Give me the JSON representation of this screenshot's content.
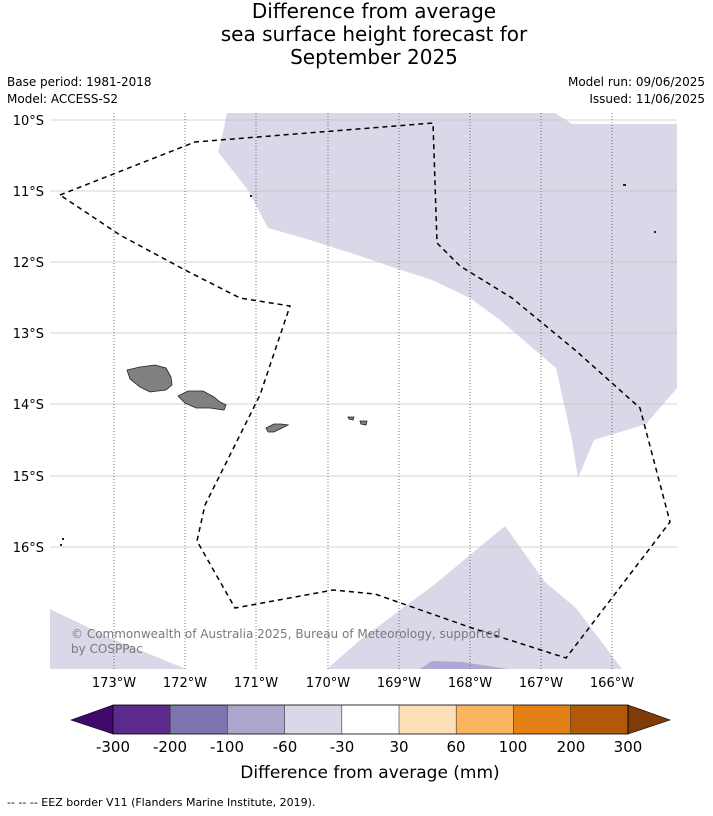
{
  "title": {
    "line1": "Difference from average",
    "line2": "sea surface height forecast for",
    "line3": "September 2025"
  },
  "meta_left": {
    "base_period": "Base period: 1981-2018",
    "model": "Model: ACCESS-S2"
  },
  "meta_right": {
    "model_run": "Model run: 09/06/2025",
    "issued": "Issued: 11/06/2025"
  },
  "map": {
    "lat_ticks": [
      "10°S",
      "11°S",
      "12°S",
      "13°S",
      "14°S",
      "15°S",
      "16°S"
    ],
    "lon_ticks": [
      "173°W",
      "172°W",
      "171°W",
      "170°W",
      "169°W",
      "168°W",
      "167°W",
      "166°W"
    ],
    "copyright_line1": "© Commonwealth of Australia 2025, Bureau of Meteorology, supported",
    "copyright_line2": "by COSPPac",
    "anomaly_fill": "#d8d8e9",
    "anomaly_fill_dark": "#afa9d1",
    "land_fill": "#808080",
    "eez_color": "#000000"
  },
  "colorbar": {
    "colors": [
      "#3f0a6b",
      "#5b2a8c",
      "#7f73b0",
      "#aca6cf",
      "#d8d8e9",
      "#ffffff",
      "#fde0b5",
      "#fbb55f",
      "#e38016",
      "#b35806",
      "#7f3b08"
    ],
    "tick_labels": [
      "-300",
      "-200",
      "-100",
      "-60",
      "-30",
      "30",
      "60",
      "100",
      "200",
      "300"
    ],
    "label": "Difference from average (mm)"
  },
  "footer": "--  --  -- EEZ border V11 (Flanders Marine Institute, 2019)."
}
